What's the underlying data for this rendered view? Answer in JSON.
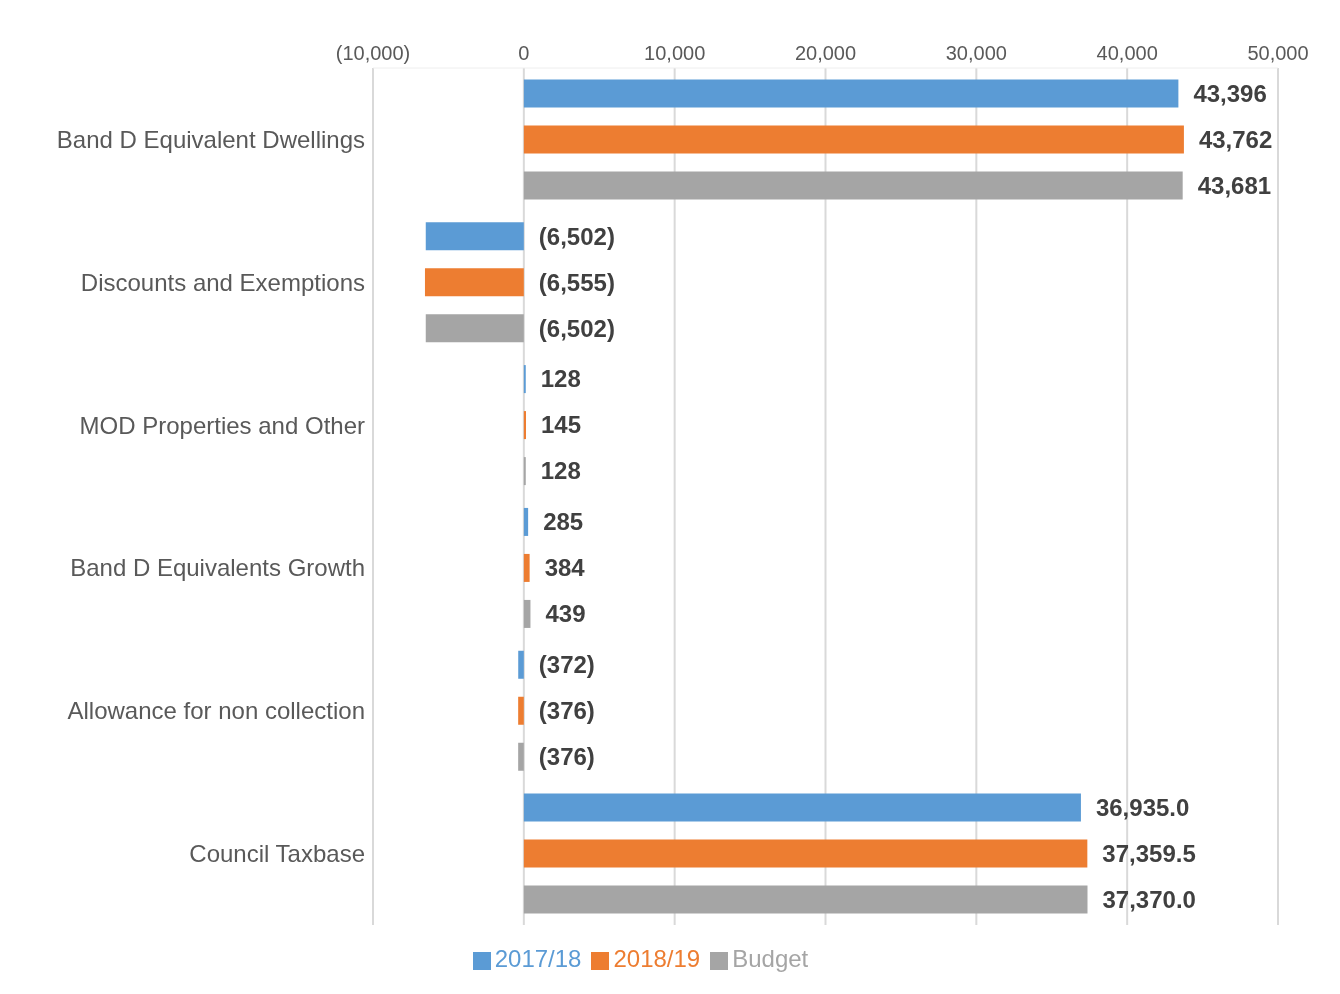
{
  "chart_data": {
    "type": "bar",
    "orientation": "horizontal",
    "categories": [
      "Band D Equivalent Dwellings",
      "Discounts and Exemptions",
      "MOD Properties and Other",
      "Band D Equivalents Growth",
      "Allowance for non collection",
      "Council Taxbase"
    ],
    "series": [
      {
        "name": "2017/18",
        "color": "#5b9bd5",
        "values": [
          43396,
          -6502,
          128,
          285,
          -372,
          36935.0
        ],
        "value_labels": [
          "43,396",
          "(6,502)",
          "128",
          "285",
          "(372)",
          "36,935.0"
        ]
      },
      {
        "name": "2018/19",
        "color": "#ed7d31",
        "values": [
          43762,
          -6555,
          145,
          384,
          -376,
          37359.5
        ],
        "value_labels": [
          "43,762",
          "(6,555)",
          "145",
          "384",
          "(376)",
          "37,359.5"
        ]
      },
      {
        "name": "Budget",
        "color": "#a5a5a5",
        "values": [
          43681,
          -6502,
          128,
          439,
          -376,
          37370.0
        ],
        "value_labels": [
          "43,681",
          "(6,502)",
          "128",
          "439",
          "(376)",
          "37,370.0"
        ]
      }
    ],
    "xlim": [
      -10000,
      50000
    ],
    "xticks": [
      {
        "value": -10000,
        "label": "(10,000)"
      },
      0,
      {
        "value": 10000,
        "label": "10,000"
      },
      {
        "value": 20000,
        "label": "20,000"
      },
      {
        "value": 30000,
        "label": "30,000"
      },
      {
        "value": 40000,
        "label": "40,000"
      },
      {
        "value": 50000,
        "label": "50,000"
      }
    ],
    "grid": "x",
    "legend": "bottom"
  }
}
